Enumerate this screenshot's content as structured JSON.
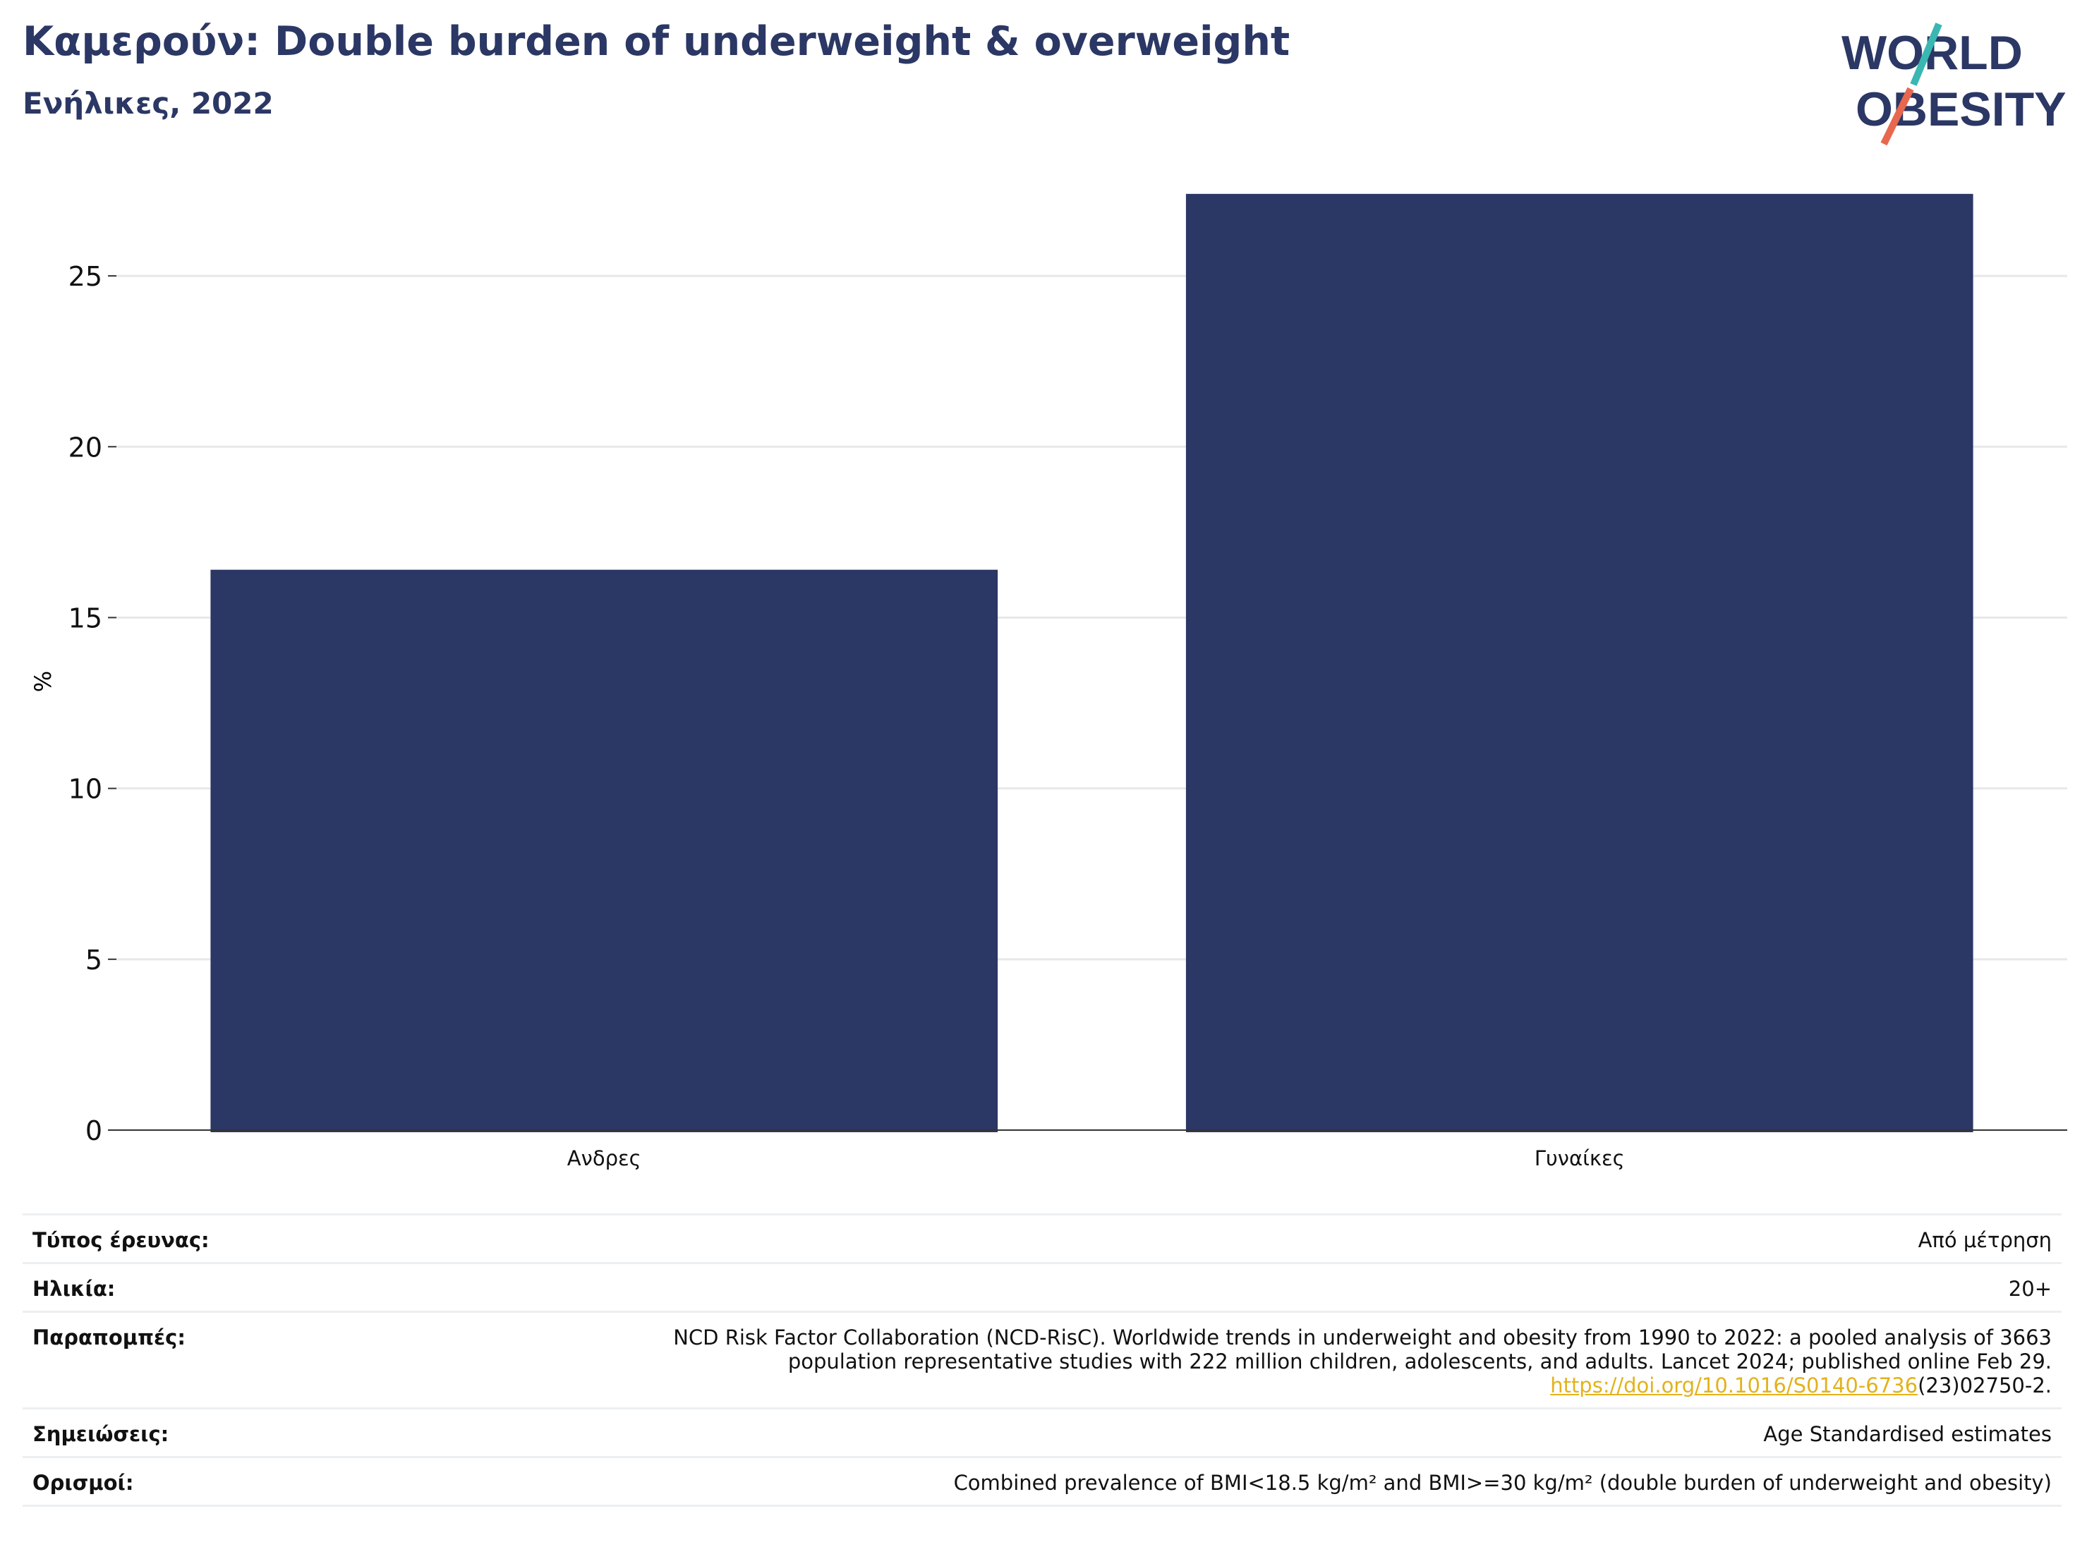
{
  "header": {
    "title": "Καμερούν: Double burden of underweight & overweight",
    "subtitle": "Ενήλικες, 2022"
  },
  "logo": {
    "line1": "WORLD",
    "line2": "OBESITY",
    "colors": {
      "text": "#2b3764",
      "slash_top": "#3ab7b3",
      "slash_bottom": "#e8674f"
    }
  },
  "colors": {
    "bar": "#2b3764",
    "grid": "#e8e8e8",
    "axis": "#333333",
    "link": "#e3b21b"
  },
  "chart_data": {
    "type": "bar",
    "categories": [
      "Ανδρες",
      "Γυναίκες"
    ],
    "values": [
      16.4,
      27.4
    ],
    "ylabel": "%",
    "xlabel": "",
    "ylim": [
      0,
      27.5
    ],
    "yticks": [
      0,
      5,
      10,
      15,
      20,
      25
    ],
    "grid": true
  },
  "meta": {
    "survey_type_label": "Τύπος έρευνας:",
    "survey_type_value": "Από μέτρηση",
    "age_label": "Ηλικία:",
    "age_value": "20+",
    "references_label": "Παραπομπές:",
    "references_line1": "NCD Risk Factor Collaboration (NCD-RisC). Worldwide trends in underweight and obesity from 1990 to 2022: a pooled analysis of 3663",
    "references_line2": "population representative studies with 222 million children, adolescents, and adults. Lancet 2024; published online Feb 29.",
    "references_link": "https://doi.org/10.1016/S0140-6736",
    "references_link_suffix": "(23)02750-2.",
    "notes_label": "Σημειώσεις:",
    "notes_value": "Age Standardised estimates",
    "definitions_label": "Ορισμοί:",
    "definitions_value": "Combined prevalence of BMI<18.5 kg/m² and BMI>=30 kg/m² (double burden of underweight and obesity)"
  }
}
